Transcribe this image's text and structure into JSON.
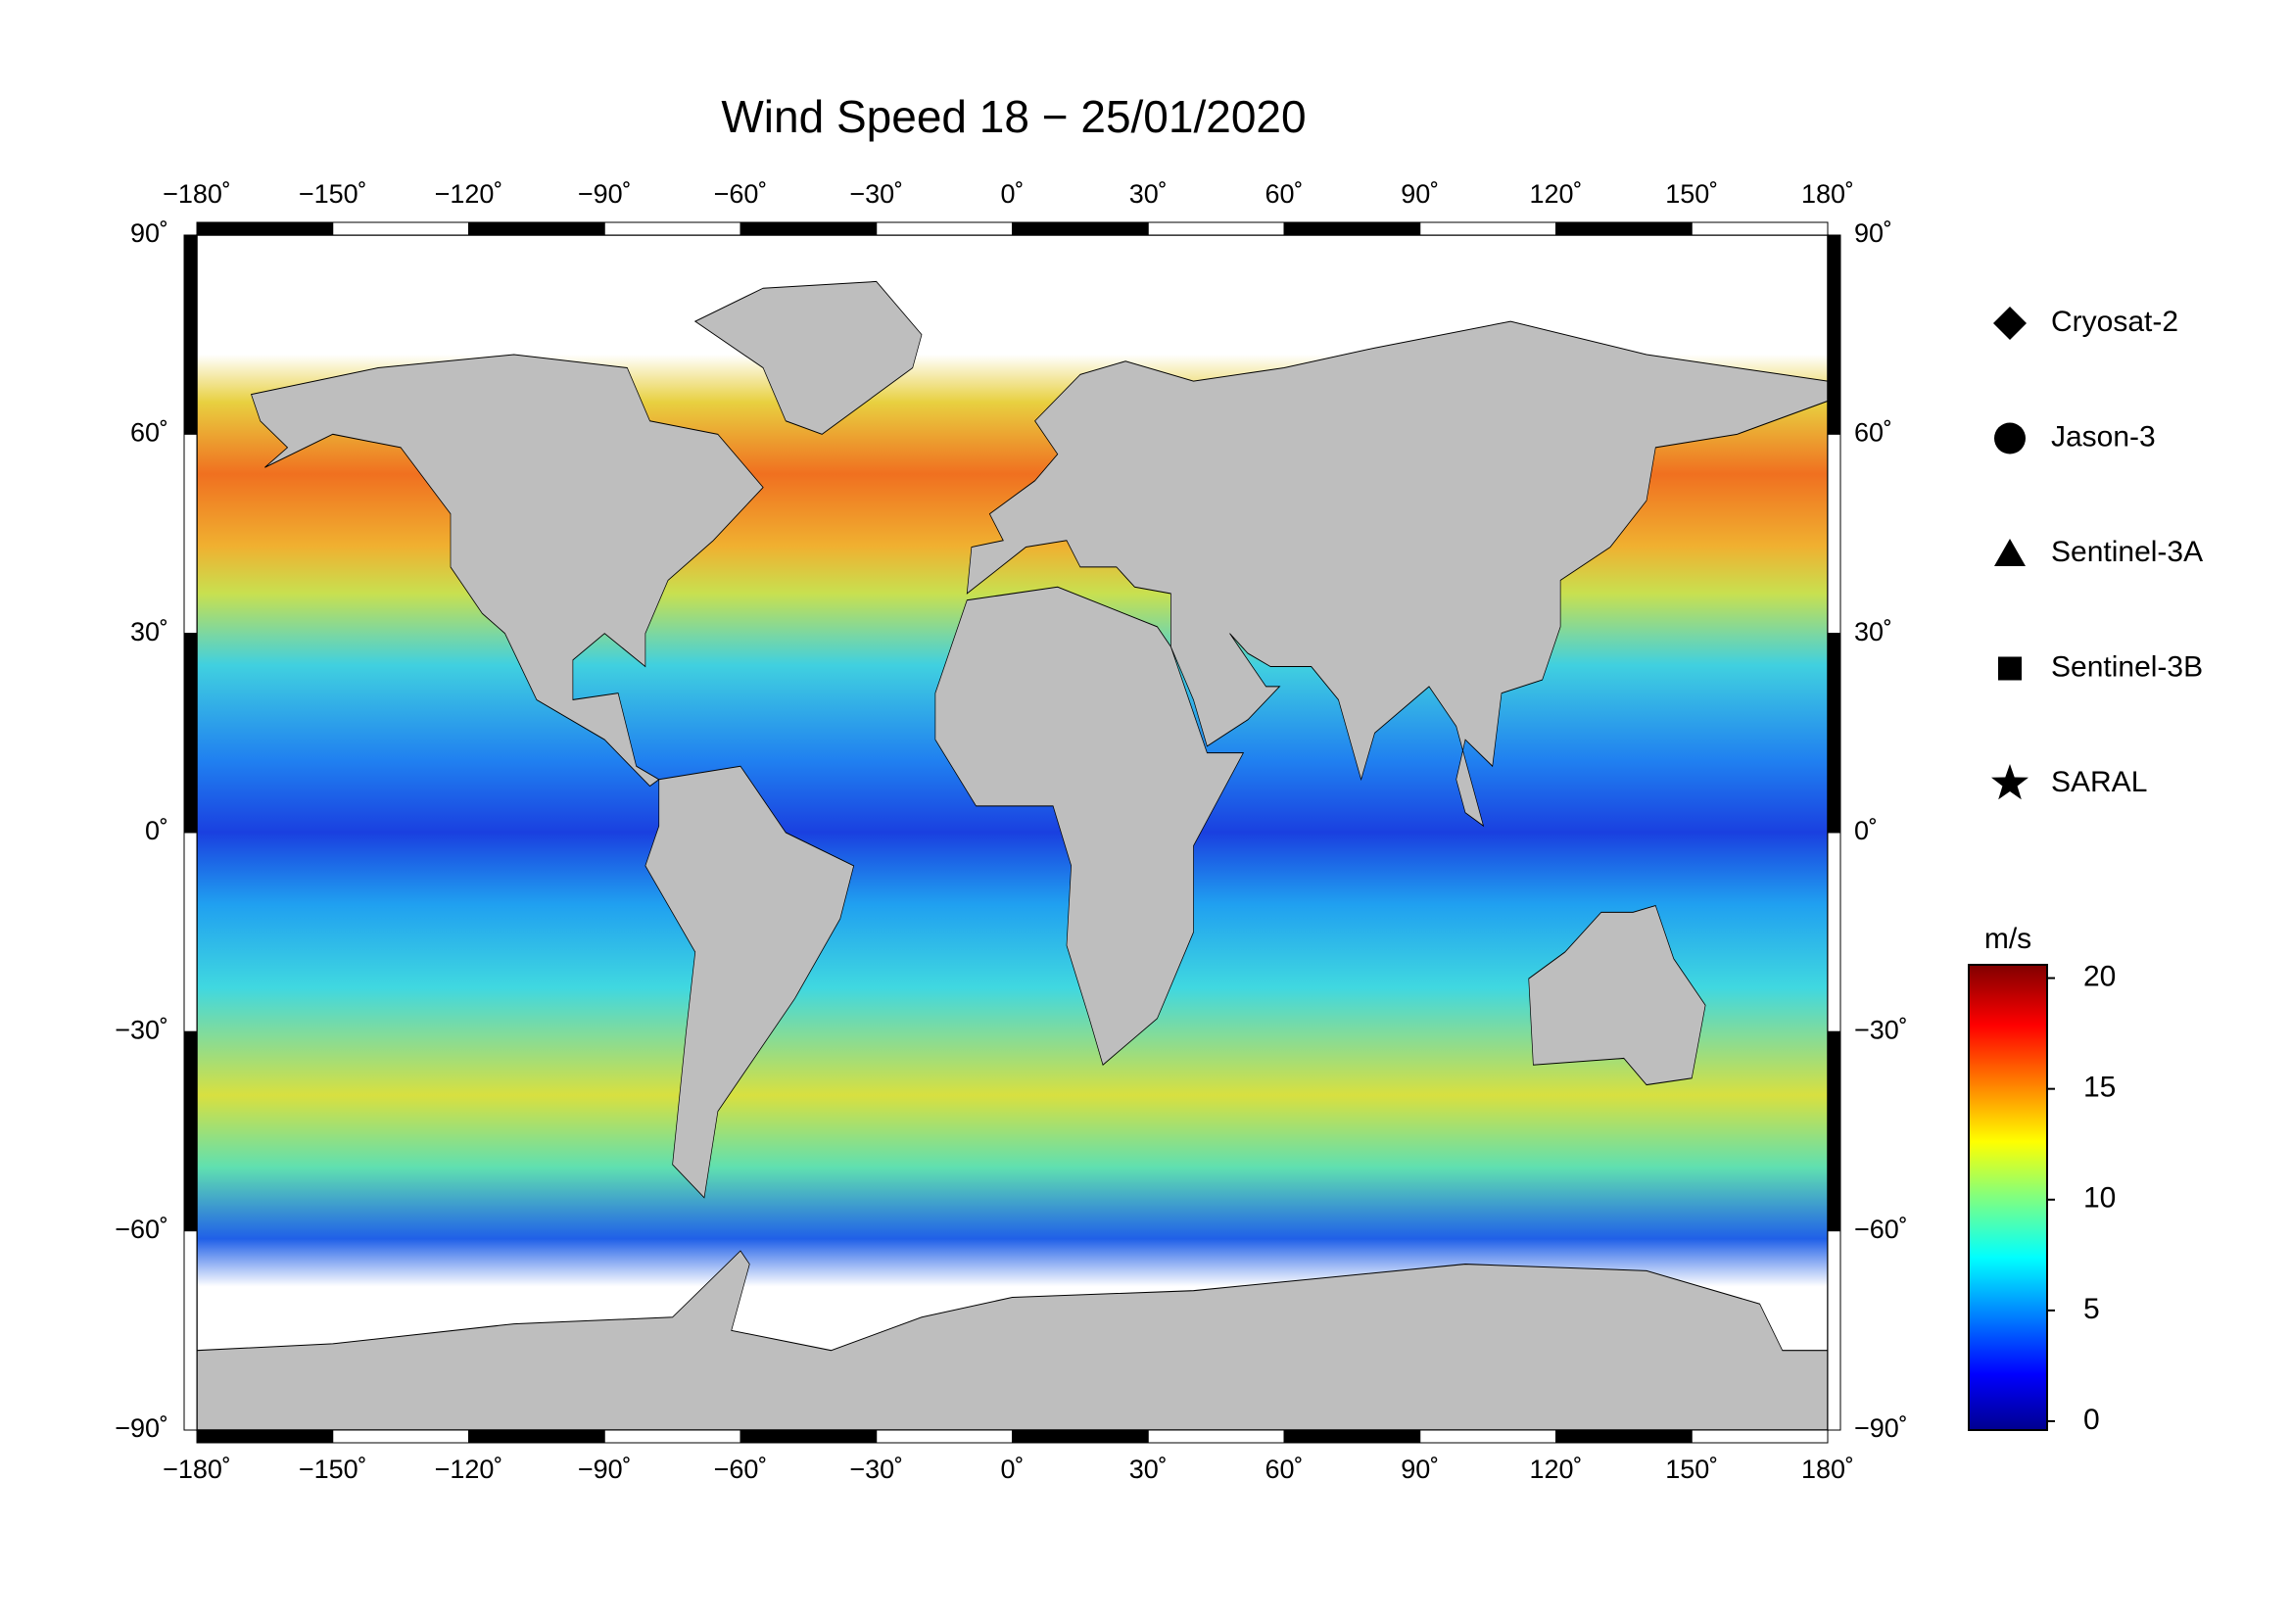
{
  "title": "Wind Speed 18 − 25/01/2020",
  "map": {
    "xlim": [
      -180,
      180
    ],
    "ylim": [
      -90,
      90
    ],
    "xticks": [
      {
        "value": -180,
        "label": "−180˚"
      },
      {
        "value": -150,
        "label": "−150˚"
      },
      {
        "value": -120,
        "label": "−120˚"
      },
      {
        "value": -90,
        "label": "−90˚"
      },
      {
        "value": -60,
        "label": "−60˚"
      },
      {
        "value": -30,
        "label": "−30˚"
      },
      {
        "value": 0,
        "label": "0˚"
      },
      {
        "value": 30,
        "label": "30˚"
      },
      {
        "value": 60,
        "label": "60˚"
      },
      {
        "value": 90,
        "label": "90˚"
      },
      {
        "value": 120,
        "label": "120˚"
      },
      {
        "value": 150,
        "label": "150˚"
      },
      {
        "value": 180,
        "label": "180˚"
      }
    ],
    "yticks": [
      {
        "value": 90,
        "label": "90˚"
      },
      {
        "value": 60,
        "label": "60˚"
      },
      {
        "value": 30,
        "label": "30˚"
      },
      {
        "value": 0,
        "label": "0˚"
      },
      {
        "value": -30,
        "label": "−30˚"
      },
      {
        "value": -60,
        "label": "−60˚"
      },
      {
        "value": -90,
        "label": "−90˚"
      }
    ],
    "grid": true
  },
  "legend": [
    {
      "label": "Cryosat-2",
      "marker": "diamond"
    },
    {
      "label": "Jason-3",
      "marker": "circle"
    },
    {
      "label": "Sentinel-3A",
      "marker": "triangle"
    },
    {
      "label": "Sentinel-3B",
      "marker": "square"
    },
    {
      "label": "SARAL",
      "marker": "star"
    }
  ],
  "colorbar": {
    "unit": "m/s",
    "lim": [
      -0.4,
      20.6
    ],
    "ticks": [
      0,
      5,
      10,
      15,
      20
    ]
  }
}
